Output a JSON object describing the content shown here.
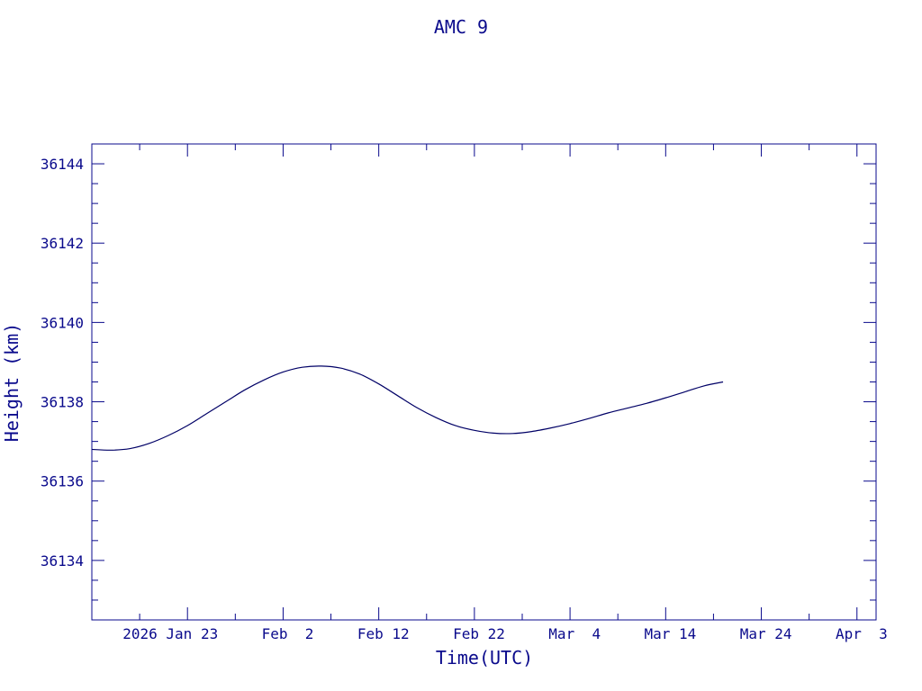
{
  "chart_data": {
    "type": "line",
    "title": "AMC 9",
    "xlabel": "Time(UTC)",
    "ylabel": "Height (km)",
    "ylim": [
      36132.5,
      36144.5
    ],
    "xlim": [
      "2026-01-13",
      "2026-04-05"
    ],
    "grid": false,
    "colors": {
      "axis": "#0a0a8c",
      "line": "#000066"
    },
    "y_ticks": [
      36134,
      36136,
      36138,
      36140,
      36142,
      36144
    ],
    "y_tick_labels": [
      "36134",
      "36136",
      "36138",
      "36140",
      "36142",
      "36144"
    ],
    "x_ticks": [
      "2026-01-23",
      "2026-02-02",
      "2026-02-12",
      "2026-02-22",
      "2026-03-04",
      "2026-03-14",
      "2026-03-24",
      "2026-04-03"
    ],
    "x_tick_labels": [
      "2026 Jan 23",
      "Feb  2",
      "Feb 12",
      "Feb 22",
      "Mar  4",
      "Mar 14",
      "Mar 24",
      "Apr  3"
    ],
    "series": [
      {
        "x": [
          "2026-01-13",
          "2026-01-15",
          "2026-01-17",
          "2026-01-19",
          "2026-01-21",
          "2026-01-23",
          "2026-01-25",
          "2026-01-27",
          "2026-01-29",
          "2026-01-31",
          "2026-02-02",
          "2026-02-04",
          "2026-02-06",
          "2026-02-08",
          "2026-02-10",
          "2026-02-12",
          "2026-02-14",
          "2026-02-16",
          "2026-02-18",
          "2026-02-20",
          "2026-02-22",
          "2026-02-24",
          "2026-02-26",
          "2026-02-28",
          "2026-03-02",
          "2026-03-04",
          "2026-03-06",
          "2026-03-08",
          "2026-03-10",
          "2026-03-12",
          "2026-03-14",
          "2026-03-16",
          "2026-03-18",
          "2026-03-20"
        ],
        "values": [
          36136.8,
          36136.78,
          36136.82,
          36136.95,
          36137.15,
          36137.4,
          36137.7,
          36138.0,
          36138.3,
          36138.55,
          36138.75,
          36138.87,
          36138.9,
          36138.85,
          36138.7,
          36138.45,
          36138.15,
          36137.85,
          36137.6,
          36137.4,
          36137.28,
          36137.21,
          36137.2,
          36137.25,
          36137.34,
          36137.45,
          36137.58,
          36137.72,
          36137.84,
          36137.96,
          36138.1,
          36138.25,
          36138.4,
          36138.5
        ]
      }
    ]
  }
}
